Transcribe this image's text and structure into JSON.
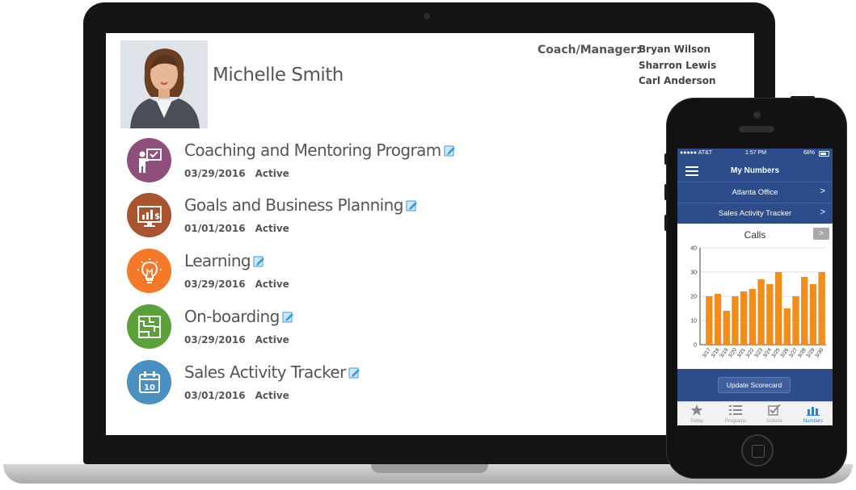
{
  "profile": {
    "name": "Michelle Smith",
    "coach_label": "Coach/Manager:",
    "coaches": [
      "Bryan Wilson",
      "Sharron Lewis",
      "Carl Anderson"
    ]
  },
  "programs": [
    {
      "title": "Coaching and Mentoring Program",
      "date": "03/29/2016",
      "status": "Active",
      "icon": "presentation-icon",
      "color": "#8e4f7c"
    },
    {
      "title": "Goals and Business Planning",
      "date": "01/01/2016",
      "status": "Active",
      "icon": "monitor-chart-icon",
      "color": "#a9532f"
    },
    {
      "title": "Learning",
      "date": "03/29/2016",
      "status": "Active",
      "icon": "lightbulb-icon",
      "color": "#f47a2a"
    },
    {
      "title": "On-boarding",
      "date": "03/29/2016",
      "status": "Active",
      "icon": "maze-icon",
      "color": "#5aa13a"
    },
    {
      "title": "Sales Activity Tracker",
      "date": "03/01/2016",
      "status": "Active",
      "icon": "calendar-icon",
      "color": "#4a90c0"
    }
  ],
  "phone": {
    "status_bar": {
      "carrier": "●●●●● AT&T",
      "time": "1:57 PM",
      "battery": "68%"
    },
    "header_title": "My Numbers",
    "rows": [
      {
        "label": "Atlanta Office",
        "chevron": ">"
      },
      {
        "label": "Sales Activity Tracker",
        "chevron": ">"
      }
    ],
    "chart_next": ">",
    "update_button": "Update Scorecard",
    "tabs": [
      {
        "label": "Today",
        "icon": "star-icon",
        "active": false
      },
      {
        "label": "Programs",
        "icon": "list-icon",
        "active": false
      },
      {
        "label": "Actions",
        "icon": "checkbox-icon",
        "active": false
      },
      {
        "label": "Numbers",
        "icon": "bar-chart-icon",
        "active": true
      }
    ]
  },
  "colors": {
    "accent": "#2c4d8a",
    "bar": "#f28c1b",
    "active_tab": "#2a7fd6"
  },
  "chart_data": {
    "type": "bar",
    "title": "Calls",
    "categories": [
      "3/17",
      "3/18",
      "3/19",
      "3/20",
      "3/21",
      "3/22",
      "3/23",
      "3/24",
      "3/25",
      "3/26",
      "3/27",
      "3/28",
      "3/29",
      "3/30"
    ],
    "values": [
      20,
      21,
      14,
      20,
      22,
      23,
      27,
      25,
      30,
      15,
      20,
      28,
      25,
      30
    ],
    "yticks": [
      0,
      10,
      20,
      30,
      40
    ],
    "ylim": [
      0,
      40
    ],
    "grid": true
  }
}
